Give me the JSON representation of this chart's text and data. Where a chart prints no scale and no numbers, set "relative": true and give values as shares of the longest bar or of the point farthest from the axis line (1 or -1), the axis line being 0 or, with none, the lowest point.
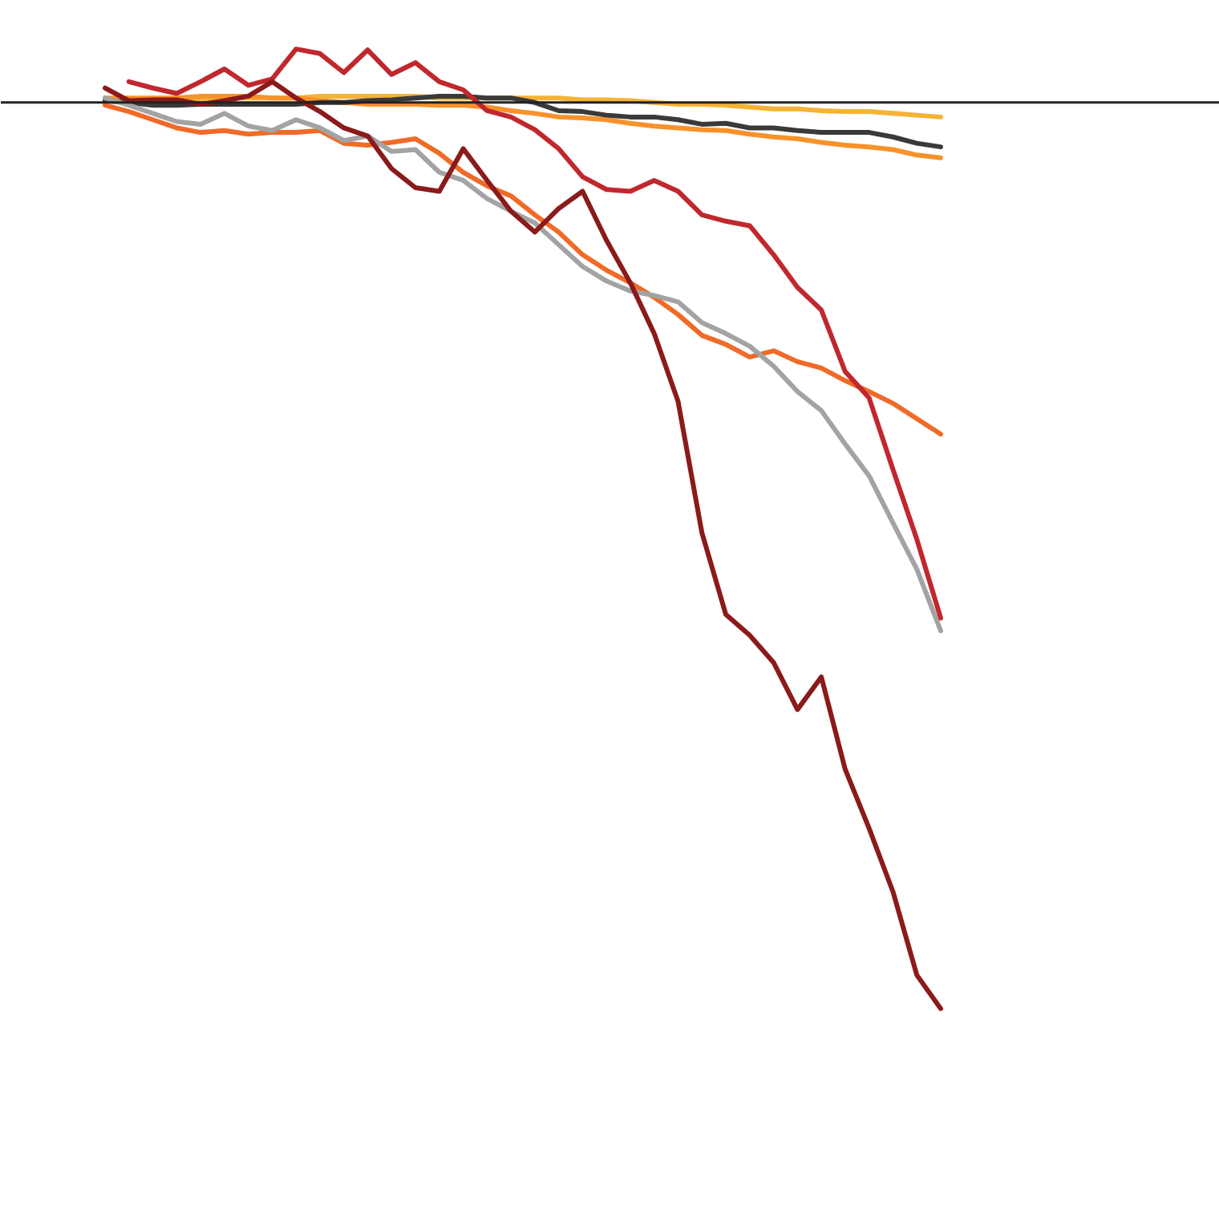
{
  "chart_data": {
    "type": "line",
    "relative": true,
    "grid": false,
    "categories": [
      null,
      null,
      null,
      null,
      null,
      null,
      null,
      null,
      null,
      null,
      null,
      null,
      null,
      null,
      null,
      null,
      null,
      null,
      null,
      null,
      null,
      null,
      null,
      null,
      null,
      null,
      null,
      null,
      null,
      null,
      null,
      null,
      null,
      null,
      null,
      null
    ],
    "series": [
      {
        "color": "#f5b335",
        "values": [
          0.002,
          0.002,
          0.003,
          0.003,
          0.003,
          0.005,
          0.005,
          0.005,
          0.005,
          0.007,
          0.007,
          0.007,
          0.007,
          0.007,
          0.005,
          0.005,
          0.005,
          0.005,
          0.005,
          0.005,
          0.003,
          0.003,
          0.002,
          0,
          -0.002,
          -0.002,
          -0.003,
          -0.005,
          -0.007,
          -0.007,
          -0.009,
          -0.01,
          -0.01,
          -0.012,
          -0.014,
          -0.016
        ]
      },
      {
        "color": "#f7922a",
        "values": [
          0.005,
          0.005,
          0.005,
          0.005,
          0.007,
          0.007,
          0.007,
          0.005,
          0.005,
          0.002,
          0,
          -0.002,
          -0.002,
          -0.002,
          -0.003,
          -0.003,
          -0.005,
          -0.009,
          -0.012,
          -0.016,
          -0.017,
          -0.019,
          -0.023,
          -0.026,
          -0.028,
          -0.03,
          -0.031,
          -0.035,
          -0.038,
          -0.04,
          -0.044,
          -0.047,
          -0.049,
          -0.052,
          -0.058,
          -0.061
        ]
      },
      {
        "color": "#3a3a3a",
        "values": [
          0.002,
          0,
          -0.003,
          -0.003,
          -0.002,
          -0.002,
          -0.002,
          -0.002,
          -0.002,
          0,
          0,
          0.002,
          0.003,
          0.005,
          0.007,
          0.007,
          0.005,
          0.005,
          0,
          -0.009,
          -0.01,
          -0.014,
          -0.016,
          -0.016,
          -0.019,
          -0.024,
          -0.023,
          -0.028,
          -0.028,
          -0.031,
          -0.033,
          -0.033,
          -0.033,
          -0.038,
          -0.045,
          -0.049
        ]
      },
      {
        "color": "#f06a28",
        "values": [
          -0.003,
          -0.01,
          -0.019,
          -0.028,
          -0.033,
          -0.031,
          -0.035,
          -0.033,
          -0.033,
          -0.031,
          -0.045,
          -0.047,
          -0.044,
          -0.04,
          -0.056,
          -0.077,
          -0.092,
          -0.103,
          -0.124,
          -0.143,
          -0.168,
          -0.185,
          -0.199,
          -0.215,
          -0.234,
          -0.257,
          -0.267,
          -0.281,
          -0.274,
          -0.286,
          -0.293,
          -0.307,
          -0.319,
          -0.332,
          -0.349,
          -0.366
        ]
      },
      {
        "color": "#a3a3a3",
        "values": [
          0.005,
          -0.003,
          -0.012,
          -0.021,
          -0.024,
          -0.012,
          -0.026,
          -0.031,
          -0.019,
          -0.028,
          -0.042,
          -0.037,
          -0.054,
          -0.052,
          -0.077,
          -0.086,
          -0.106,
          -0.12,
          -0.133,
          -0.157,
          -0.181,
          -0.197,
          -0.208,
          -0.213,
          -0.22,
          -0.243,
          -0.255,
          -0.269,
          -0.291,
          -0.319,
          -0.34,
          -0.377,
          -0.412,
          -0.464,
          -0.515,
          -0.583
        ]
      },
      {
        "color": "#c0282d",
        "values": [
          null,
          0.023,
          0.016,
          0.01,
          0.023,
          0.037,
          0.019,
          0.026,
          0.059,
          0.054,
          0.033,
          0.058,
          0.031,
          0.044,
          0.023,
          0.014,
          -0.009,
          -0.016,
          -0.03,
          -0.051,
          -0.082,
          -0.096,
          -0.098,
          -0.086,
          -0.098,
          -0.124,
          -0.131,
          -0.136,
          -0.168,
          -0.204,
          -0.229,
          -0.297,
          -0.326,
          -0.405,
          -0.482,
          -0.569
        ]
      },
      {
        "color": "#8b1a1a",
        "values": [
          0.016,
          0.002,
          0.003,
          0.003,
          -0.002,
          0.002,
          0.007,
          0.023,
          0.005,
          -0.01,
          -0.028,
          -0.037,
          -0.073,
          -0.094,
          -0.098,
          -0.051,
          -0.086,
          -0.12,
          -0.143,
          -0.117,
          -0.098,
          -0.152,
          -0.199,
          -0.255,
          -0.33,
          -0.475,
          -0.565,
          -0.588,
          -0.618,
          -0.67,
          -0.634,
          -0.736,
          -0.801,
          -0.871,
          -0.963,
          -1
        ]
      }
    ]
  }
}
